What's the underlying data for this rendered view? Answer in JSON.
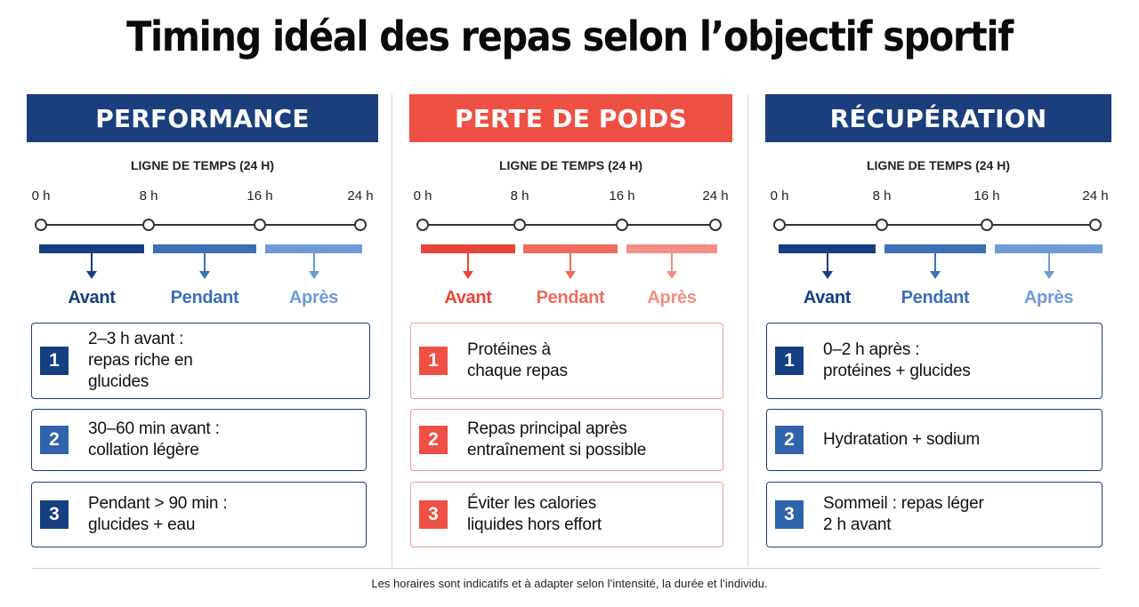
{
  "title": "Timing idéal des repas selon l’objectif sportif",
  "footnote": "Les horaires sont indicatifs et à adapter selon l’intensité, la durée et l’individu.",
  "columns": [
    {
      "header": "PERFORMANCE",
      "header_color": "#1b3f7c",
      "timeline_label": "LIGNE DE TEMPS (24 H)",
      "ticks": [
        "0 h",
        "8 h",
        "16 h",
        "24 h"
      ],
      "phases": [
        {
          "label": "Avant",
          "color": "#163f82"
        },
        {
          "label": "Pendant",
          "color": "#3c6fb6"
        },
        {
          "label": "Après",
          "color": "#6e9bd6"
        }
      ],
      "card_border": "#1b3f7c",
      "cards": [
        {
          "num": "1",
          "text": "2–3 h avant :\nrepas riche en\nglucides",
          "num_color": "#163f82"
        },
        {
          "num": "2",
          "text": "30–60 min avant :\ncollation légère",
          "num_color": "#2f63ac"
        },
        {
          "num": "3",
          "text": "Pendant > 90 min :\nglucides + eau",
          "num_color": "#163f82"
        }
      ]
    },
    {
      "header": "PERTE DE POIDS",
      "header_color": "#ee5044",
      "timeline_label": "LIGNE DE TEMPS (24 H)",
      "ticks": [
        "0 h",
        "8 h",
        "16 h",
        "24 h"
      ],
      "phases": [
        {
          "label": "Avant",
          "color": "#e8453a"
        },
        {
          "label": "Pendant",
          "color": "#ef6a5f"
        },
        {
          "label": "Après",
          "color": "#f28e86"
        }
      ],
      "card_border": "#f19b94",
      "cards": [
        {
          "num": "1",
          "text": "Protéines à\nchaque repas",
          "num_color": "#ee5044"
        },
        {
          "num": "2",
          "text": "Repas principal après\nentraînement si possible",
          "num_color": "#ee5044"
        },
        {
          "num": "3",
          "text": "Éviter les calories\nliquides hors effort",
          "num_color": "#ee5044"
        }
      ]
    },
    {
      "header": "RÉCUPÉRATION",
      "header_color": "#1b3f7c",
      "timeline_label": "LIGNE DE TEMPS (24 H)",
      "ticks": [
        "0 h",
        "8 h",
        "16 h",
        "24 h"
      ],
      "phases": [
        {
          "label": "Avant",
          "color": "#163f82"
        },
        {
          "label": "Pendant",
          "color": "#3c6fb6"
        },
        {
          "label": "Après",
          "color": "#6e9bd6"
        }
      ],
      "card_border": "#1b3f7c",
      "cards": [
        {
          "num": "1",
          "text": "0–2 h après :\nprotéines + glucides",
          "num_color": "#163f82"
        },
        {
          "num": "2",
          "text": "Hydratation + sodium",
          "num_color": "#2f63ac"
        },
        {
          "num": "3",
          "text": "Sommeil : repas léger\n2 h avant",
          "num_color": "#2f63ac"
        }
      ]
    }
  ]
}
